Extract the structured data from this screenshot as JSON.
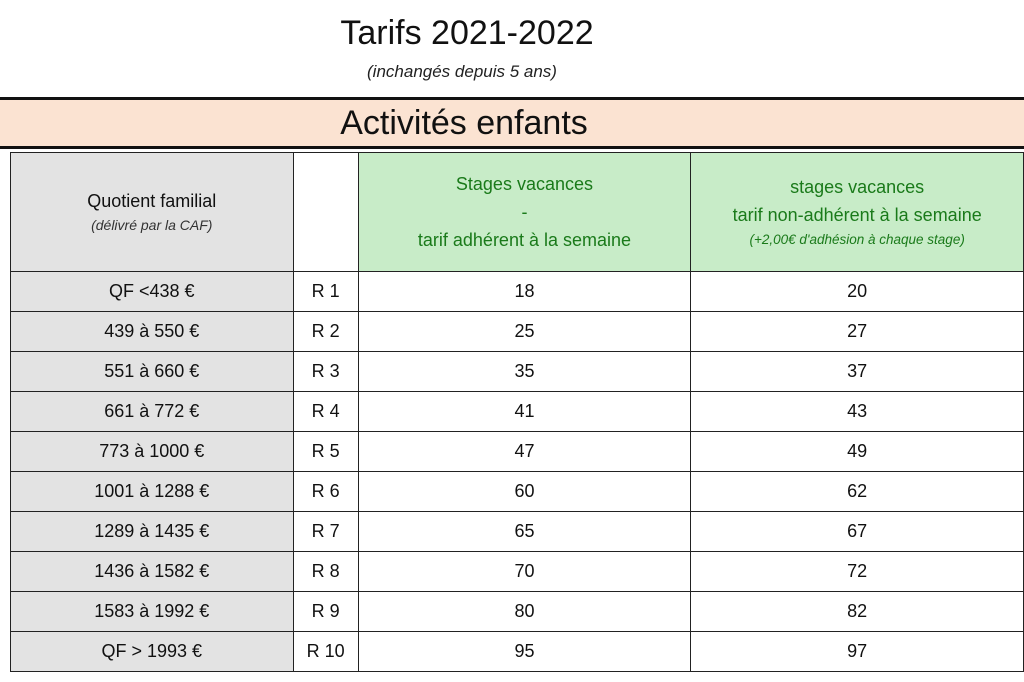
{
  "title": "Tarifs 2021-2022",
  "subtitle": "(inchangés depuis 5 ans)",
  "banner": "Activités enfants",
  "header": {
    "col1_line1": "Quotient familial",
    "col1_line2": "(délivré par la CAF)",
    "col3_line1": "Stages vacances",
    "col3_line2": "-",
    "col3_line3": "tarif adhérent à la semaine",
    "col4_line1": "stages vacances",
    "col4_line2": "tarif non-adhérent à la semaine",
    "col4_line3": "(+2,00€ d'adhésion à chaque stage)"
  },
  "rows": [
    {
      "qf": "QF <438 €",
      "code": "R 1",
      "adherent": "18",
      "non_adherent": "20"
    },
    {
      "qf": "439 à 550 €",
      "code": "R 2",
      "adherent": "25",
      "non_adherent": "27"
    },
    {
      "qf": "551 à 660 €",
      "code": "R 3",
      "adherent": "35",
      "non_adherent": "37"
    },
    {
      "qf": "661 à 772 €",
      "code": "R 4",
      "adherent": "41",
      "non_adherent": "43"
    },
    {
      "qf": "773 à 1000 €",
      "code": "R 5",
      "adherent": "47",
      "non_adherent": "49"
    },
    {
      "qf": "1001 à 1288 €",
      "code": "R 6",
      "adherent": "60",
      "non_adherent": "62"
    },
    {
      "qf": "1289 à 1435 €",
      "code": "R 7",
      "adherent": "65",
      "non_adherent": "67"
    },
    {
      "qf": "1436 à 1582 €",
      "code": "R 8",
      "adherent": "70",
      "non_adherent": "72"
    },
    {
      "qf": "1583 à 1992 €",
      "code": "R 9",
      "adherent": "80",
      "non_adherent": "82"
    },
    {
      "qf": "QF > 1993 €",
      "code": "R 10",
      "adherent": "95",
      "non_adherent": "97"
    }
  ],
  "colors": {
    "banner_bg": "#fbe3d2",
    "green_header_bg": "#c8ecc8",
    "green_text": "#1a7a1a",
    "qf_column_bg": "#e3e3e3"
  }
}
